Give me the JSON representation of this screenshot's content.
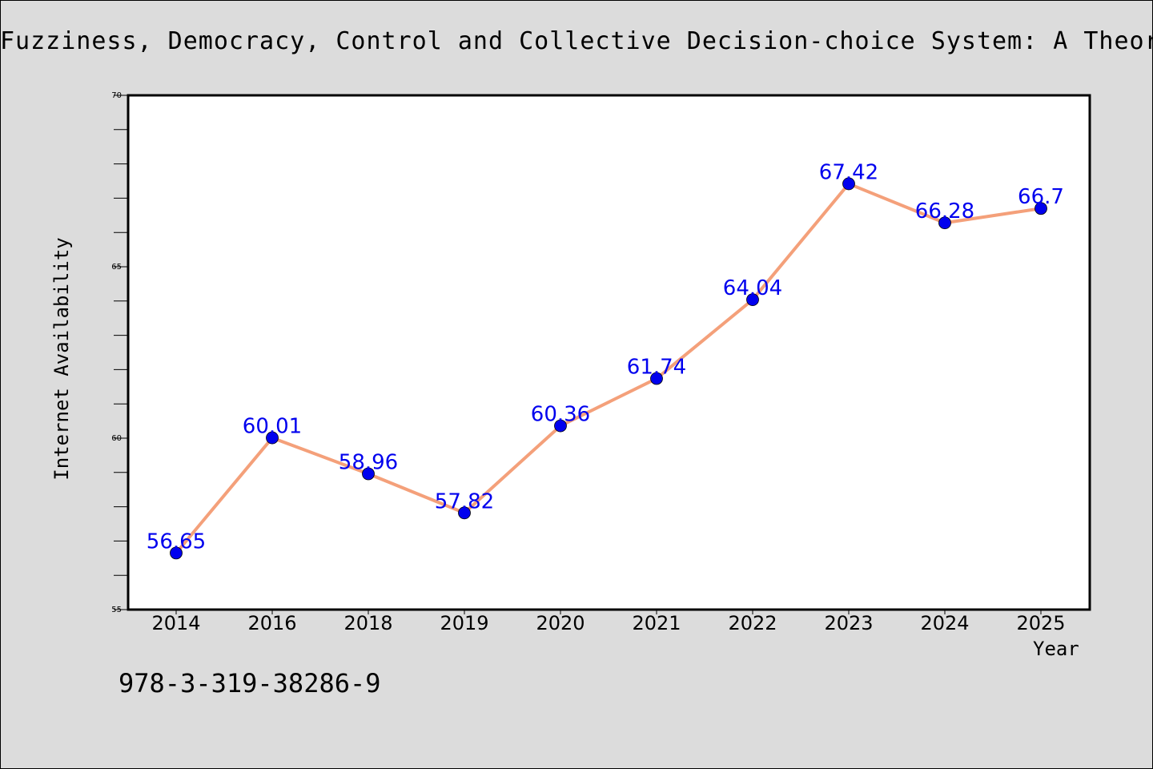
{
  "chart_data": {
    "type": "line",
    "title": "Fuzziness, Democracy, Control and Collective Decision-choice System: A Theory on",
    "xlabel": "Year",
    "ylabel": "Internet Availability",
    "categories": [
      "2014",
      "2016",
      "2018",
      "2019",
      "2020",
      "2021",
      "2022",
      "2023",
      "2024",
      "2025"
    ],
    "series": [
      {
        "values": [
          56.65,
          60.01,
          58.96,
          57.82,
          60.36,
          61.74,
          64.04,
          67.42,
          66.28,
          66.7
        ],
        "labels": [
          "56.65",
          "60.01",
          "58.96",
          "57.82",
          "60.36",
          "61.74",
          "64.04",
          "67.42",
          "66.28",
          "66.7"
        ],
        "line_color": "#f4a07a",
        "marker_color": "#0000ee",
        "label_color": "#0000ee"
      }
    ],
    "ylim": [
      55,
      70
    ],
    "yticks": [
      "55",
      "60",
      "65",
      "70"
    ],
    "grid": false,
    "legend": "none"
  },
  "footer": {
    "isbn": "978-3-319-38286-9"
  },
  "colors": {
    "background": "#dcdcdc",
    "plot_background": "#ffffff"
  }
}
